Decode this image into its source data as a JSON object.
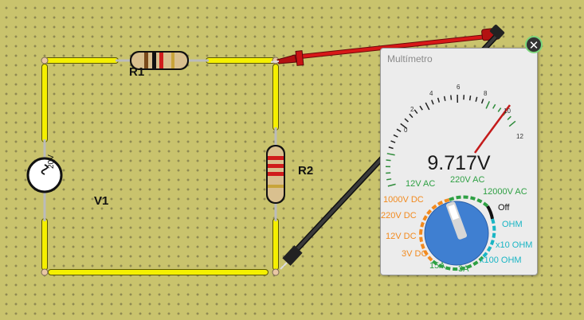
{
  "circuit": {
    "r1_label": "R1",
    "r2_label": "R2",
    "v1_label": "V1",
    "source_value": "20V"
  },
  "multimeter": {
    "title": "Multímetro",
    "reading": "9.717V",
    "close_icon": "close-icon",
    "scale_ticks": [
      "0",
      "2",
      "4",
      "6",
      "8",
      "10",
      "12"
    ],
    "dial": {
      "dc_volts": [
        "1000V DC",
        "220V DC",
        "12V DC",
        "3V DC"
      ],
      "ac_volts": [
        "12V AC",
        "220V AC",
        "12000V AC"
      ],
      "off": "Off",
      "ohm": [
        "OHM",
        "x10 OHM",
        "x100 OHM"
      ],
      "amps": [
        "15A",
        "3A"
      ]
    }
  },
  "colors": {
    "wire": "#f5f000",
    "board": "#c9c36d",
    "probe_red": "#d81818",
    "probe_black": "#2a2a2a",
    "knob": "#3f7fd1"
  }
}
